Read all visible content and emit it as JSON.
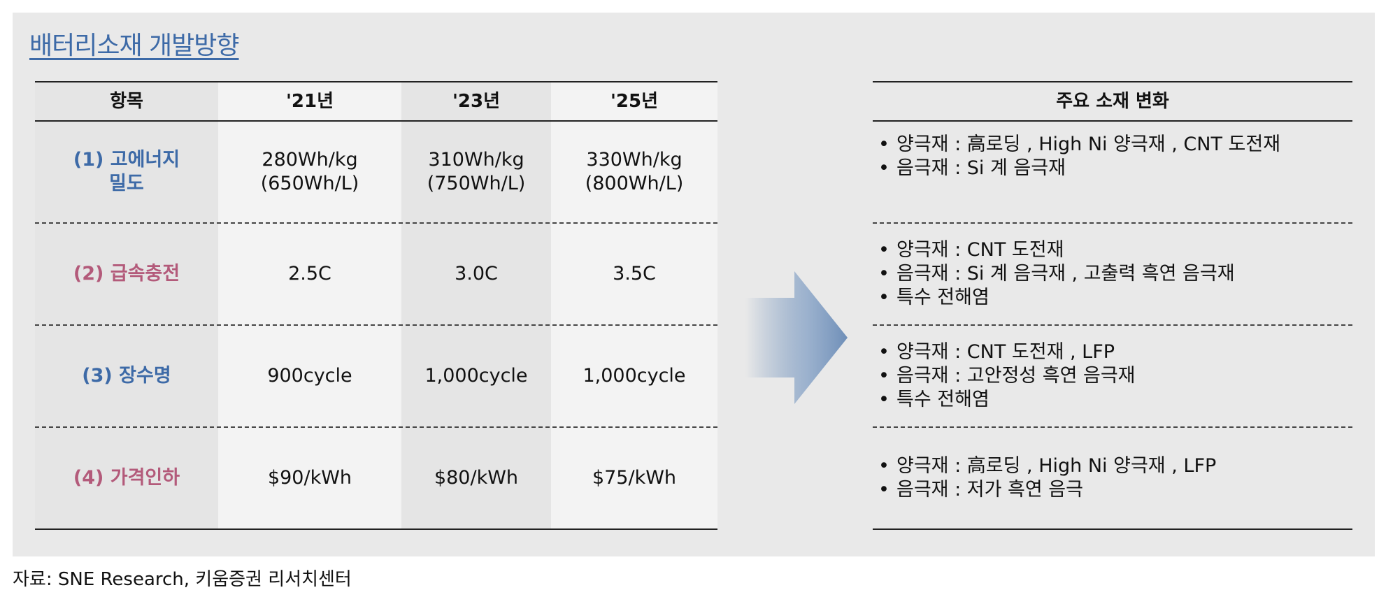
{
  "title": "배터리소재 개발방향",
  "table": {
    "headers": [
      "항목",
      "'21년",
      "'23년",
      "'25년"
    ],
    "rows": [
      {
        "item": "(1) 고에너지\n밀도",
        "y21": "280Wh/kg\n(650Wh/L)",
        "y23": "310Wh/kg\n(750Wh/L)",
        "y25": "330Wh/kg\n(800Wh/L)"
      },
      {
        "item": "(2) 급속충전",
        "y21": "2.5C",
        "y23": "3.0C",
        "y25": "3.5C"
      },
      {
        "item": "(3) 장수명",
        "y21": "900cycle",
        "y23": "1,000cycle",
        "y25": "1,000cycle"
      },
      {
        "item": "(4) 가격인하",
        "y21": "$90/kWh",
        "y23": "$80/kWh",
        "y25": "$75/kWh"
      }
    ]
  },
  "materials": {
    "header": "주요 소재 변화",
    "rows": [
      [
        "양극재 : 高로딩 , High Ni 양극재 , CNT 도전재",
        "음극재 : Si 계 음극재"
      ],
      [
        "양극재 : CNT 도전재",
        "음극재 : Si 계 음극재 , 고출력 흑연 음극재",
        "특수 전해염"
      ],
      [
        "양극재 : CNT 도전재 , LFP",
        "음극재 : 고안정성 흑연 음극재",
        "특수 전해염"
      ],
      [
        "양극재 : 高로딩 , High Ni 양극재 , LFP",
        "음극재 : 저가 흑연 음극"
      ]
    ]
  },
  "source": "자료: SNE Research, 키움증권 리서치센터",
  "colors": {
    "blue_item": "#3d6aa7",
    "pink_item": "#b35a7a",
    "arrow": "#6f8fb8"
  }
}
